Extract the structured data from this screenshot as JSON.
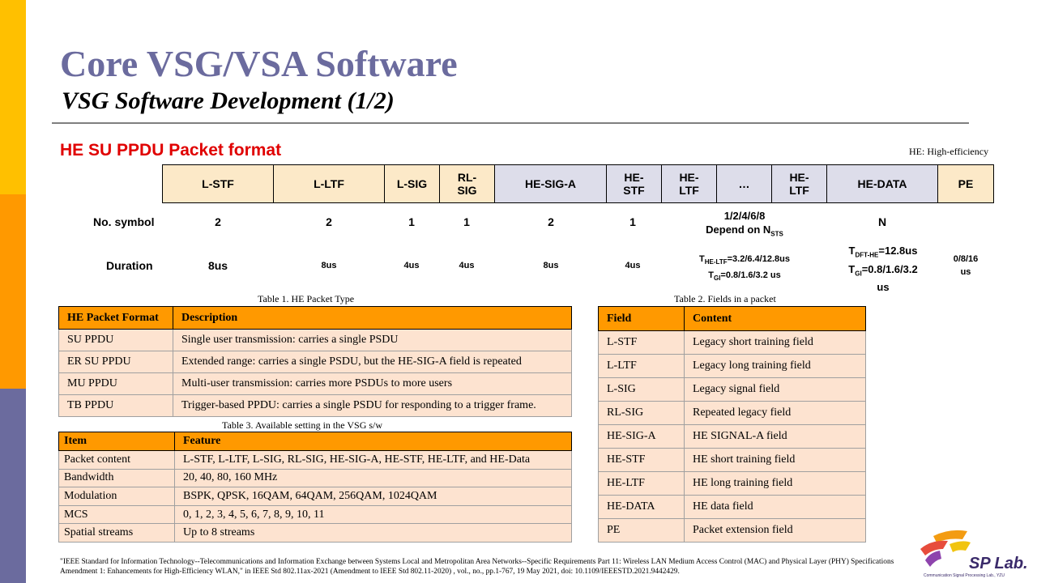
{
  "slide": {
    "title": "Core VSG/VSA Software",
    "subtitle": "VSG Software Development (1/2)",
    "section_title": "HE SU PPDU Packet format",
    "he_note": "HE: High-efficiency"
  },
  "packet": {
    "fields": [
      "L-STF",
      "L-LTF",
      "L-SIG",
      "RL-\nSIG",
      "HE-SIG-A",
      "HE-\nSTF",
      "HE-\nLTF",
      "…",
      "HE-\nLTF",
      "HE-DATA",
      "PE"
    ],
    "row_labels": {
      "symbol": "No. symbol",
      "duration": "Duration"
    },
    "symbols": {
      "lstf": "2",
      "lltf": "2",
      "lsig": "1",
      "rlsig": "1",
      "hesiga": "2",
      "hestf": "1",
      "heltf_line1": "1/2/4/6/8",
      "heltf_line2": "Depend on N",
      "heltf_sub": "STS",
      "data": "N"
    },
    "durations": {
      "lstf": "8us",
      "lltf": "8us",
      "lsig": "4us",
      "rlsig": "4us",
      "hesiga": "8us",
      "hestf": "4us",
      "heltf_t": "T",
      "heltf_t_sub": "HE-LTF",
      "heltf_t_val": "=3.2/6.4/12.8us",
      "heltf_g": "T",
      "heltf_g_sub": "GI",
      "heltf_g_val": "=0.8/1.6/3.2  us",
      "data_t": "T",
      "data_t_sub": "DFT-HE",
      "data_t_val": "=12.8us",
      "data_g": "T",
      "data_g_sub": "GI",
      "data_g_val": "=0.8/1.6/3.2",
      "data_us": "us",
      "pe_line1": "0/8/16",
      "pe_line2": "us"
    }
  },
  "table1": {
    "caption": "Table 1. HE Packet Type",
    "headers": [
      "HE Packet Format",
      "Description"
    ],
    "rows": [
      [
        "SU  PPDU",
        "Single user transmission: carries a single PSDU"
      ],
      [
        "ER SU  PPDU",
        "Extended range: carries a single PSDU, but the HE-SIG-A field is repeated"
      ],
      [
        "MU  PPDU",
        "Multi-user transmission: carries more PSDUs to more users"
      ],
      [
        "TB PPDU",
        "Trigger-based PPDU: carries a single PSDU for responding to a trigger frame."
      ]
    ]
  },
  "table2": {
    "caption": "Table 2. Fields in a packet",
    "headers": [
      "Field",
      "Content"
    ],
    "rows": [
      [
        "L-STF",
        "Legacy short training  field"
      ],
      [
        "L-LTF",
        "Legacy long training  field"
      ],
      [
        "L-SIG",
        "Legacy signal  field"
      ],
      [
        "RL-SIG",
        "Repeated legacy field"
      ],
      [
        "HE-SIG-A",
        "HE SIGNAL-A field"
      ],
      [
        "HE-STF",
        "HE short training  field"
      ],
      [
        "HE-LTF",
        "HE long  training  field"
      ],
      [
        "HE-DATA",
        "HE data field"
      ],
      [
        "PE",
        "Packet extension field"
      ]
    ]
  },
  "table3": {
    "caption": "Table 3. Available setting in the VSG  s/w",
    "headers": [
      "Item",
      "Feature"
    ],
    "rows": [
      [
        "Packet content",
        "L-STF, L-LTF, L-SIG, RL-SIG, HE-SIG-A, HE-STF, HE-LTF, and HE-Data"
      ],
      [
        "Bandwidth",
        "20, 40, 80, 160 MHz"
      ],
      [
        "Modulation",
        "BSPK, QPSK, 16QAM, 64QAM, 256QAM, 1024QAM"
      ],
      [
        "MCS",
        "0, 1, 2, 3, 4, 5, 6, 7, 8, 9, 10, 11"
      ],
      [
        "Spatial streams",
        "Up to 8 streams"
      ]
    ]
  },
  "reference": "\"IEEE Standard for Information Technology--Telecommunications and Information Exchange between Systems Local and Metropolitan Area Networks--Specific Requirements Part 11: Wireless LAN Medium Access Control (MAC) and Physical Layer (PHY) Specifications Amendment 1: Enhancements for High-Efficiency WLAN,\" in IEEE Std 802.11ax-2021 (Amendment to IEEE Std 802.11-2020) , vol., no., pp.1-767, 19 May 2021, doi: 10.1109/IEEESTD.2021.9442429.",
  "logo": {
    "name": "SP Lab.",
    "tagline": "Communication Signal Processing Lab., YZU"
  }
}
